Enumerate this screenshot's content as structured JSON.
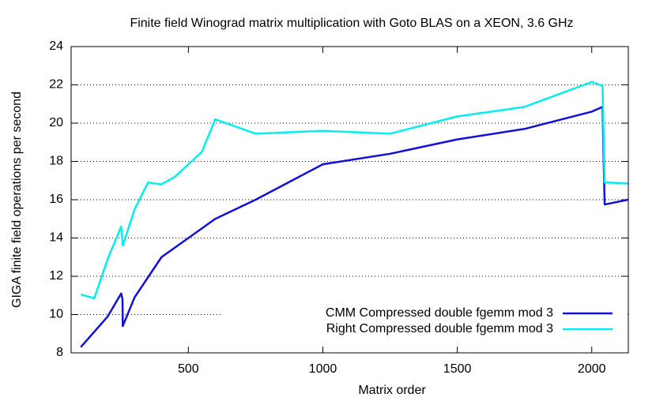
{
  "chart_data": {
    "type": "line",
    "title": "Finite field Winograd matrix multiplication with Goto BLAS on a XEON, 3.6 GHz",
    "x_label": "Matrix order",
    "y_label": "GIGA finite field operations per second",
    "xlim": [
      64,
      2136
    ],
    "xticks": [
      500,
      1000,
      1500,
      2000
    ],
    "ylim": [
      8,
      24
    ],
    "yticks": [
      8,
      10,
      12,
      14,
      16,
      18,
      20,
      22,
      24
    ],
    "grid": true,
    "legend": "lower right",
    "series": [
      {
        "name": "CMM Compressed double fgemm mod 3",
        "color": "#1010dd",
        "x": [
          100,
          200,
          250,
          255,
          256,
          300,
          400,
          600,
          750,
          1000,
          1250,
          1500,
          1750,
          2000,
          2040,
          2048,
          2135
        ],
        "values": [
          8.3,
          9.9,
          11.1,
          10.8,
          9.4,
          10.9,
          13.0,
          15.0,
          16.0,
          17.85,
          18.4,
          19.15,
          19.7,
          20.6,
          20.85,
          15.75,
          16.0
        ]
      },
      {
        "name": "Right Compressed double fgemm mod 3",
        "color": "#00eeee",
        "x": [
          100,
          150,
          200,
          250,
          256,
          300,
          350,
          400,
          450,
          550,
          600,
          750,
          1000,
          1250,
          1500,
          1750,
          2000,
          2040,
          2048,
          2135
        ],
        "values": [
          11.05,
          10.85,
          12.9,
          14.6,
          13.6,
          15.5,
          16.9,
          16.8,
          17.2,
          18.5,
          20.2,
          19.45,
          19.6,
          19.45,
          20.35,
          20.85,
          22.15,
          21.95,
          16.9,
          16.85
        ]
      }
    ]
  }
}
